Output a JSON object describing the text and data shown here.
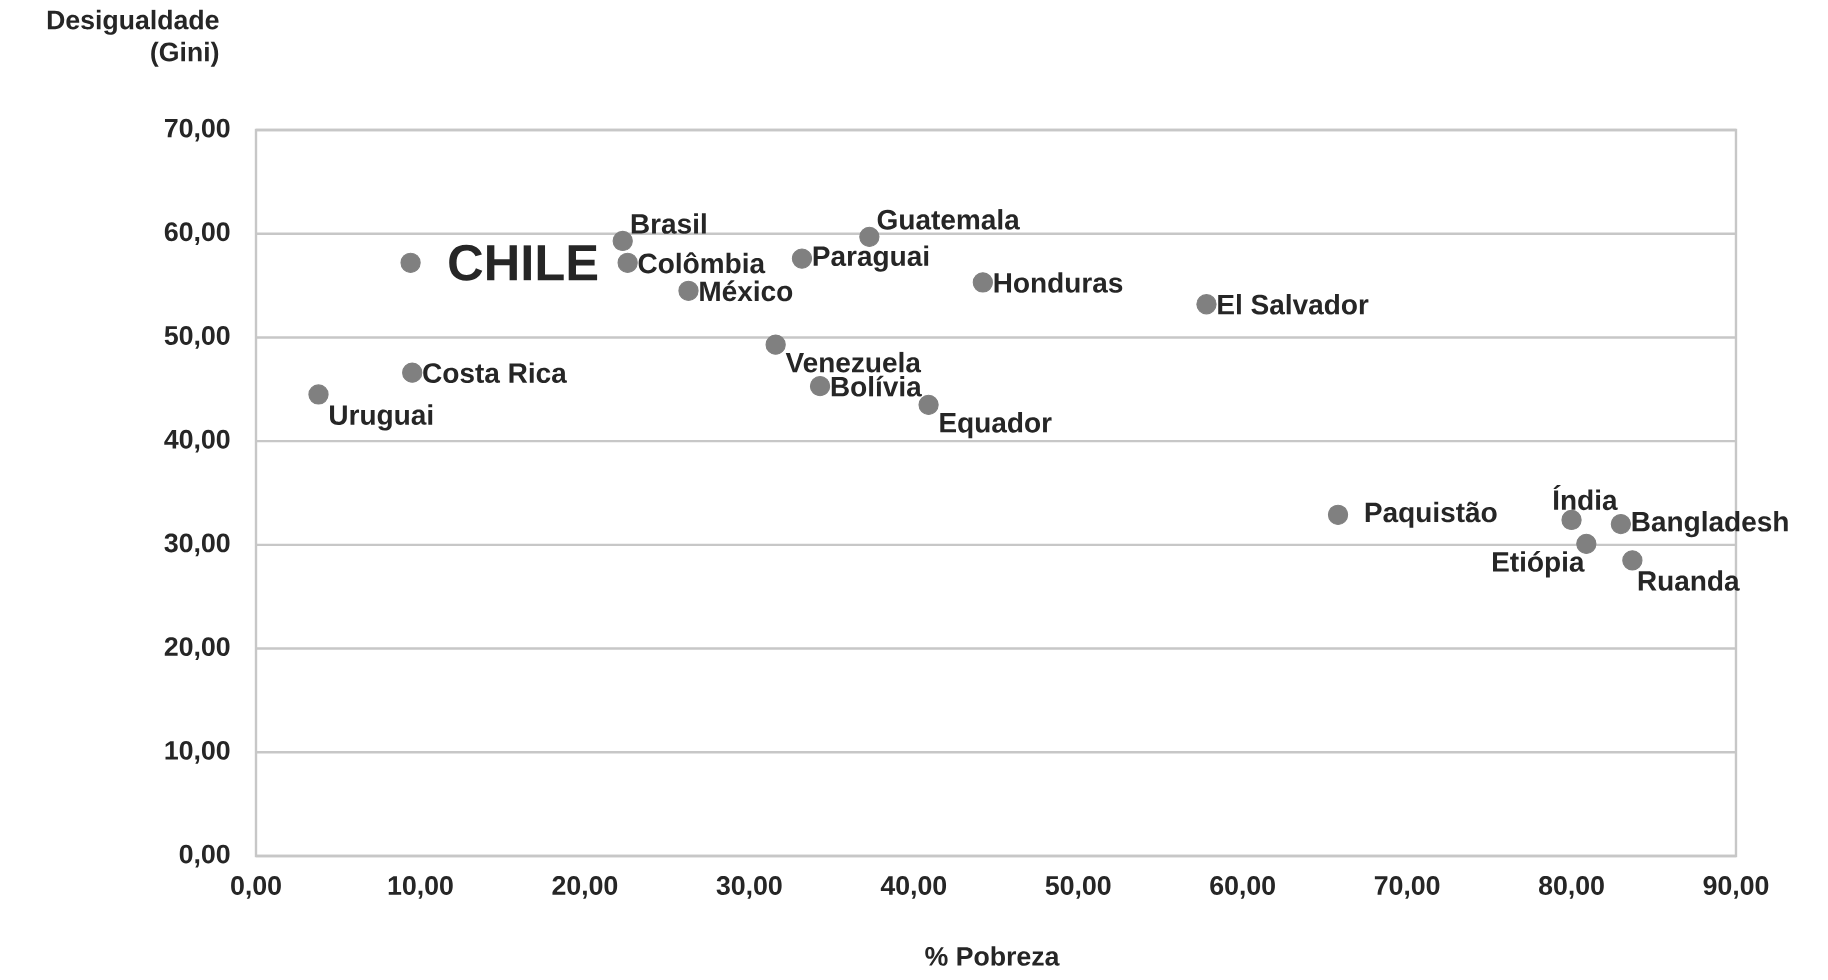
{
  "chart_data": {
    "type": "scatter",
    "xlabel": "% Pobreza",
    "ylabel": "Desigualdade (Gini)",
    "x": [
      9.4,
      3.8,
      9.5,
      22.3,
      22.6,
      26.3,
      31.6,
      33.2,
      37.3,
      34.3,
      40.9,
      44.2,
      57.8,
      65.8,
      80.0,
      83.0,
      80.9,
      83.7
    ],
    "values": [
      57.2,
      44.5,
      46.6,
      59.3,
      57.2,
      54.5,
      49.3,
      57.6,
      59.7,
      45.3,
      43.5,
      55.3,
      53.2,
      32.9,
      32.4,
      32.0,
      30.1,
      28.5
    ],
    "color": "#808080",
    "grid": "y",
    "xlim": [
      0,
      90
    ],
    "ylim": [
      0,
      70
    ],
    "xticks": [
      {
        "value": 0,
        "label": "0,00"
      },
      {
        "value": 10,
        "label": "10,00"
      },
      {
        "value": 20,
        "label": "20,00"
      },
      {
        "value": 30,
        "label": "30,00"
      },
      {
        "value": 40,
        "label": "40,00"
      },
      {
        "value": 50,
        "label": "50,00"
      },
      {
        "value": 60,
        "label": "60,00"
      },
      {
        "value": 70,
        "label": "70,00"
      },
      {
        "value": 80,
        "label": "80,00"
      },
      {
        "value": 90,
        "label": "90,00"
      }
    ],
    "yticks": [
      {
        "value": 0,
        "label": "0,00"
      },
      {
        "value": 10,
        "label": "10,00"
      },
      {
        "value": 20,
        "label": "20,00"
      },
      {
        "value": 30,
        "label": "30,00"
      },
      {
        "value": 40,
        "label": "40,00"
      },
      {
        "value": 50,
        "label": "50,00"
      },
      {
        "value": 60,
        "label": "60,00"
      },
      {
        "value": 70,
        "label": "70,00"
      }
    ],
    "annotations": [
      {
        "text": "CHILE",
        "x": 9.4,
        "y": 57.2
      },
      {
        "text": "Uruguai",
        "x": 3.8,
        "y": 44.5
      },
      {
        "text": "Costa Rica",
        "x": 9.5,
        "y": 46.6
      },
      {
        "text": "Brasil",
        "x": 22.3,
        "y": 59.3
      },
      {
        "text": "Colômbia",
        "x": 22.6,
        "y": 57.2
      },
      {
        "text": "México",
        "x": 26.3,
        "y": 54.5
      },
      {
        "text": "Venezuela",
        "x": 31.6,
        "y": 49.3
      },
      {
        "text": "Paraguai",
        "x": 33.2,
        "y": 57.6
      },
      {
        "text": "Guatemala",
        "x": 37.3,
        "y": 59.7
      },
      {
        "text": "Bolívia",
        "x": 34.3,
        "y": 45.3
      },
      {
        "text": "Equador",
        "x": 40.9,
        "y": 43.5
      },
      {
        "text": "Honduras",
        "x": 44.2,
        "y": 55.3
      },
      {
        "text": "El Salvador",
        "x": 57.8,
        "y": 53.2
      },
      {
        "text": "Paquistão",
        "x": 65.8,
        "y": 32.9
      },
      {
        "text": "Índia",
        "x": 80.0,
        "y": 32.4
      },
      {
        "text": "Bangladesh",
        "x": 83.0,
        "y": 32.0
      },
      {
        "text": "Etiópia",
        "x": 80.9,
        "y": 30.1
      },
      {
        "text": "Ruanda",
        "x": 83.7,
        "y": 28.5
      }
    ]
  }
}
